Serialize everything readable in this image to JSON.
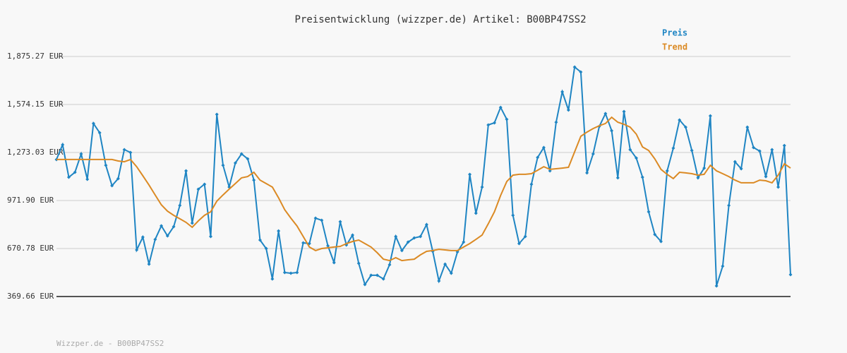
{
  "chart_data": {
    "type": "line",
    "title": "Preisentwicklung (wizzper.de) Artikel: B00BP47SS2",
    "footer": "Wizzper.de - B00BP47SS2",
    "ylim": [
      369.66,
      1875.27
    ],
    "yticks": [
      {
        "value": 369.66,
        "label": "369.66 EUR"
      },
      {
        "value": 670.78,
        "label": "670.78 EUR"
      },
      {
        "value": 971.9,
        "label": "971.90 EUR"
      },
      {
        "value": 1273.03,
        "label": "1,273.03 EUR"
      },
      {
        "value": 1574.15,
        "label": "1,574.15 EUR"
      },
      {
        "value": 1875.27,
        "label": "1,875.27 EUR"
      }
    ],
    "grid": true,
    "legend": "top-right",
    "series": [
      {
        "name": "Preis",
        "color": "#1f85c3",
        "markers": true,
        "values": [
          1229,
          1322,
          1118,
          1149,
          1264,
          1105,
          1455,
          1397,
          1193,
          1065,
          1109,
          1291,
          1273,
          662,
          742,
          573,
          728,
          813,
          750,
          808,
          941,
          1158,
          830,
          1043,
          1074,
          746,
          1512,
          1193,
          1056,
          1207,
          1264,
          1233,
          1100,
          724,
          671,
          480,
          781,
          520,
          516,
          520,
          706,
          702,
          861,
          848,
          688,
          582,
          839,
          693,
          755,
          578,
          445,
          503,
          503,
          480,
          569,
          746,
          658,
          711,
          737,
          746,
          821,
          653,
          467,
          573,
          516,
          649,
          711,
          1136,
          892,
          1056,
          1446,
          1459,
          1556,
          1481,
          879,
          702,
          746,
          1074,
          1242,
          1304,
          1158,
          1463,
          1654,
          1539,
          1809,
          1778,
          1145,
          1264,
          1437,
          1517,
          1410,
          1114,
          1530,
          1291,
          1238,
          1118,
          901,
          759,
          715,
          1158,
          1300,
          1477,
          1432,
          1286,
          1114,
          1175,
          1503,
          436,
          560,
          941,
          1215,
          1171,
          1432,
          1304,
          1282,
          1122,
          1291,
          1056,
          1317,
          507
        ]
      },
      {
        "name": "Trend",
        "color": "#db8a24",
        "markers": false,
        "values": [
          1229,
          1229,
          1229,
          1229,
          1229,
          1229,
          1229,
          1229,
          1229,
          1229,
          1220,
          1215,
          1229,
          1184,
          1127,
          1069,
          1007,
          945,
          905,
          879,
          857,
          835,
          804,
          844,
          879,
          901,
          968,
          1007,
          1043,
          1078,
          1114,
          1122,
          1149,
          1100,
          1078,
          1056,
          989,
          914,
          861,
          812,
          746,
          680,
          658,
          671,
          675,
          680,
          684,
          702,
          715,
          724,
          702,
          680,
          644,
          604,
          595,
          613,
          595,
          600,
          604,
          631,
          653,
          658,
          666,
          662,
          658,
          658,
          680,
          702,
          728,
          755,
          826,
          901,
          1003,
          1091,
          1131,
          1136,
          1136,
          1140,
          1162,
          1184,
          1167,
          1171,
          1175,
          1180,
          1277,
          1375,
          1401,
          1423,
          1441,
          1455,
          1494,
          1463,
          1450,
          1432,
          1388,
          1308,
          1286,
          1233,
          1167,
          1136,
          1109,
          1149,
          1145,
          1140,
          1131,
          1136,
          1193,
          1158,
          1140,
          1122,
          1100,
          1083,
          1083,
          1083,
          1100,
          1096,
          1083,
          1131,
          1202,
          1175
        ]
      }
    ]
  }
}
